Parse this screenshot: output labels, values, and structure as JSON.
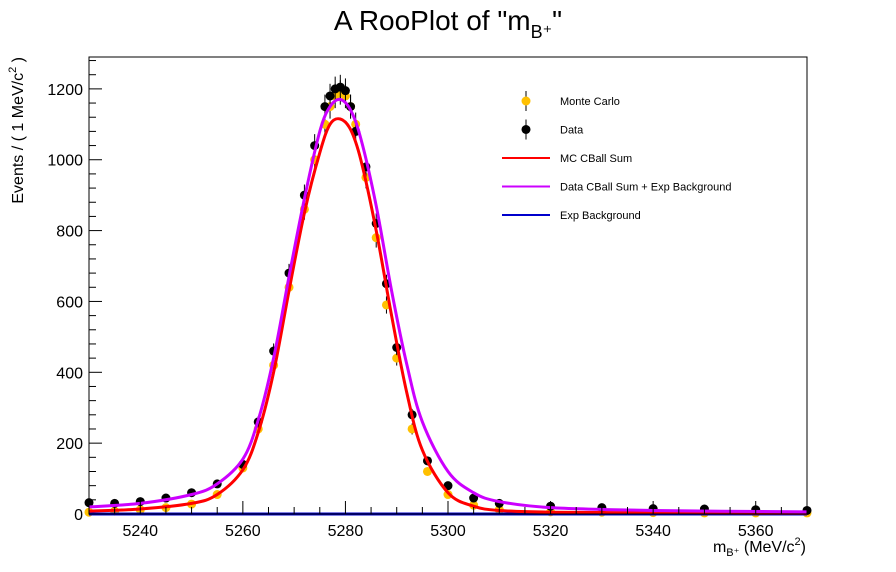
{
  "chart_data": {
    "type": "scatter",
    "title": "A RooPlot of \"m",
    "title_sub": "B⁺",
    "title_end": "\"",
    "xlabel": "m",
    "xlabel_sub": "B⁺",
    "xlabel_unit": "(MeV/c",
    "xlabel_unit_sup": "2",
    "xlabel_unit_end": ")",
    "ylabel": "Events / ( 1 MeV/c",
    "ylabel_sup": "2",
    "ylabel_end": " )",
    "xlim": [
      5230,
      5370
    ],
    "ylim": [
      0,
      1290
    ],
    "x_ticks": [
      5240,
      5260,
      5280,
      5300,
      5320,
      5340,
      5360
    ],
    "y_ticks": [
      0,
      200,
      400,
      600,
      800,
      1000,
      1200
    ],
    "legend_position": "top-right",
    "legend": [
      {
        "label": "Monte Carlo",
        "kind": "marker",
        "color": "#ffc000"
      },
      {
        "label": "Data",
        "kind": "marker",
        "color": "#000000"
      },
      {
        "label": "MC CBall Sum",
        "kind": "line",
        "color": "#ff0000"
      },
      {
        "label": "Data CBall Sum + Exp Background",
        "kind": "line",
        "color": "#cc00ff"
      },
      {
        "label": "Exp Background",
        "kind": "line",
        "color": "#0000cc"
      }
    ],
    "series": [
      {
        "name": "Monte Carlo",
        "kind": "points",
        "color": "#ffc000",
        "x": [
          5230,
          5235,
          5240,
          5245,
          5250,
          5255,
          5260,
          5263,
          5266,
          5269,
          5272,
          5274,
          5276,
          5277,
          5278,
          5279,
          5280,
          5281,
          5282,
          5284,
          5286,
          5288,
          5290,
          5293,
          5296,
          5300,
          5305,
          5310,
          5320,
          5330,
          5340,
          5350,
          5360,
          5370
        ],
        "y": [
          5,
          8,
          12,
          18,
          28,
          55,
          130,
          240,
          420,
          640,
          860,
          1000,
          1100,
          1150,
          1180,
          1190,
          1180,
          1150,
          1100,
          950,
          780,
          590,
          440,
          240,
          120,
          55,
          25,
          12,
          6,
          5,
          4,
          3,
          3,
          3
        ]
      },
      {
        "name": "Data",
        "kind": "points",
        "color": "#000000",
        "x": [
          5230,
          5235,
          5240,
          5245,
          5250,
          5255,
          5260,
          5263,
          5266,
          5269,
          5272,
          5274,
          5276,
          5277,
          5278,
          5279,
          5280,
          5281,
          5282,
          5284,
          5286,
          5288,
          5290,
          5293,
          5296,
          5300,
          5305,
          5310,
          5320,
          5330,
          5340,
          5350,
          5360,
          5370
        ],
        "y": [
          32,
          30,
          35,
          45,
          60,
          85,
          140,
          260,
          460,
          680,
          900,
          1040,
          1150,
          1180,
          1200,
          1205,
          1195,
          1150,
          1080,
          980,
          820,
          650,
          470,
          280,
          150,
          80,
          45,
          30,
          22,
          18,
          15,
          14,
          12,
          10
        ]
      },
      {
        "name": "MC CBall Sum",
        "kind": "line",
        "color": "#ff0000",
        "x": [
          5230,
          5240,
          5250,
          5255,
          5260,
          5263,
          5266,
          5269,
          5272,
          5275,
          5277,
          5279,
          5281,
          5283,
          5286,
          5289,
          5292,
          5295,
          5300,
          5305,
          5310,
          5320,
          5340,
          5370
        ],
        "y": [
          8,
          14,
          30,
          55,
          125,
          230,
          400,
          630,
          850,
          1020,
          1100,
          1115,
          1085,
          1000,
          800,
          560,
          340,
          180,
          60,
          22,
          10,
          5,
          3,
          2
        ]
      },
      {
        "name": "Data CBall Sum + Exp Background",
        "kind": "line",
        "color": "#cc00ff",
        "x": [
          5230,
          5240,
          5250,
          5255,
          5260,
          5263,
          5266,
          5269,
          5272,
          5275,
          5277,
          5279,
          5281,
          5283,
          5286,
          5289,
          5292,
          5295,
          5300,
          5305,
          5310,
          5320,
          5340,
          5370
        ],
        "y": [
          20,
          30,
          55,
          85,
          155,
          265,
          440,
          670,
          890,
          1080,
          1150,
          1170,
          1140,
          1060,
          870,
          630,
          420,
          260,
          120,
          60,
          35,
          18,
          10,
          6
        ]
      },
      {
        "name": "Exp Background",
        "kind": "line",
        "color": "#0000cc",
        "x": [
          5230,
          5370
        ],
        "y": [
          0,
          0
        ]
      }
    ]
  }
}
